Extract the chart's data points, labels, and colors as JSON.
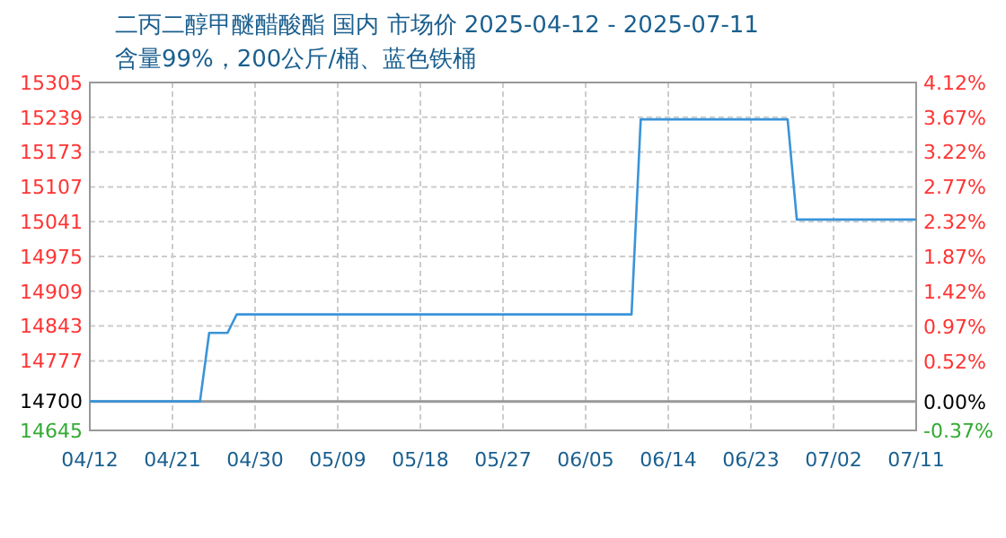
{
  "chart_data": {
    "type": "line",
    "title": "二丙二醇甲醚醋酸酯 国内 市场价 2025-04-12 - 2025-07-11",
    "subtitle": "含量99%，200公斤/桶、蓝色铁桶",
    "x": [
      "2025-04-12",
      "2025-04-24",
      "2025-04-25",
      "2025-04-27",
      "2025-04-28",
      "2025-06-10",
      "2025-06-11",
      "2025-06-27",
      "2025-06-28",
      "2025-07-11"
    ],
    "series": [
      {
        "color": "#3a94d8",
        "values": [
          14700,
          14700,
          14830,
          14830,
          14865,
          14865,
          15235,
          15235,
          15045,
          15045
        ]
      }
    ],
    "xlim": [
      "2025-04-12",
      "2025-07-11"
    ],
    "xticks": [
      {
        "value": "2025-04-12",
        "label": "04/12"
      },
      {
        "value": "2025-04-21",
        "label": "04/21"
      },
      {
        "value": "2025-04-30",
        "label": "04/30"
      },
      {
        "value": "2025-05-09",
        "label": "05/09"
      },
      {
        "value": "2025-05-18",
        "label": "05/18"
      },
      {
        "value": "2025-05-27",
        "label": "05/27"
      },
      {
        "value": "2025-06-05",
        "label": "06/05"
      },
      {
        "value": "2025-06-14",
        "label": "06/14"
      },
      {
        "value": "2025-06-23",
        "label": "06/23"
      },
      {
        "value": "2025-07-02",
        "label": "07/02"
      },
      {
        "value": "2025-07-11",
        "label": "07/11"
      }
    ],
    "ylim": [
      14645,
      15305
    ],
    "yticks": [
      14645,
      14700,
      14777,
      14843,
      14909,
      14975,
      15041,
      15107,
      15173,
      15239,
      15305
    ],
    "y2lim": [
      -0.37,
      4.12
    ],
    "y2ticks": [
      {
        "value": -0.37,
        "label": "-0.37%"
      },
      {
        "value": 0,
        "label": "0.00%"
      },
      {
        "value": 0.52,
        "label": "0.52%"
      },
      {
        "value": 0.97,
        "label": "0.97%"
      },
      {
        "value": 1.42,
        "label": "1.42%"
      },
      {
        "value": 1.87,
        "label": "1.87%"
      },
      {
        "value": 2.32,
        "label": "2.32%"
      },
      {
        "value": 2.77,
        "label": "2.77%"
      },
      {
        "value": 3.22,
        "label": "3.22%"
      },
      {
        "value": 3.67,
        "label": "3.67%"
      },
      {
        "value": 4.12,
        "label": "4.12%"
      }
    ],
    "ref_lines": [
      {
        "axis": "y",
        "value": 14700,
        "color": "#999999"
      }
    ],
    "grid": true,
    "marker": "none",
    "line_style": "solid"
  }
}
